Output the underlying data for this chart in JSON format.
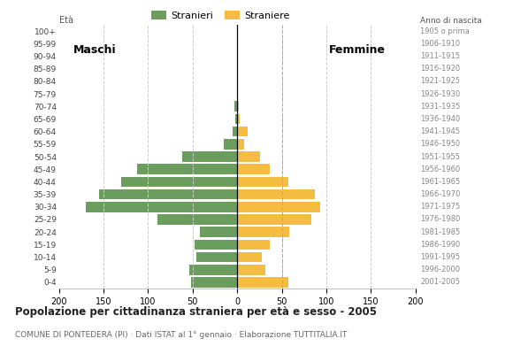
{
  "age_groups": [
    "100+",
    "95-99",
    "90-94",
    "85-89",
    "80-84",
    "75-79",
    "70-74",
    "65-69",
    "60-64",
    "55-59",
    "50-54",
    "45-49",
    "40-44",
    "35-39",
    "30-34",
    "25-29",
    "20-24",
    "15-19",
    "10-14",
    "5-9",
    "0-4"
  ],
  "birth_years": [
    "1905 o prima",
    "1906-1910",
    "1911-1915",
    "1916-1920",
    "1921-1925",
    "1926-1930",
    "1931-1935",
    "1936-1940",
    "1941-1945",
    "1946-1950",
    "1951-1955",
    "1956-1960",
    "1961-1965",
    "1966-1970",
    "1971-1975",
    "1976-1980",
    "1981-1985",
    "1986-1990",
    "1991-1995",
    "1996-2000",
    "2001-2005"
  ],
  "males": [
    0,
    0,
    0,
    0,
    0,
    0,
    3,
    2,
    5,
    15,
    62,
    112,
    130,
    155,
    170,
    90,
    42,
    48,
    46,
    54,
    52
  ],
  "females": [
    0,
    0,
    0,
    0,
    0,
    0,
    2,
    3,
    12,
    8,
    26,
    36,
    57,
    87,
    93,
    83,
    58,
    36,
    28,
    32,
    57
  ],
  "male_color": "#6b9e5e",
  "female_color": "#f5bc42",
  "female_dashed_color": "#7abfbf",
  "bg_color": "#ffffff",
  "grid_color": "#cccccc",
  "title": "Popolazione per cittadinanza straniera per età e sesso - 2005",
  "subtitle": "COMUNE DI PONTEDERA (PI) · Dati ISTAT al 1° gennaio · Elaborazione TUTTITALIA.IT",
  "label_eta": "Età",
  "label_anno": "Anno di nascita",
  "label_maschi": "Maschi",
  "label_femmine": "Femmine",
  "legend_stranieri": "Stranieri",
  "legend_straniere": "Straniere",
  "xlim": 200,
  "bar_height": 0.82
}
